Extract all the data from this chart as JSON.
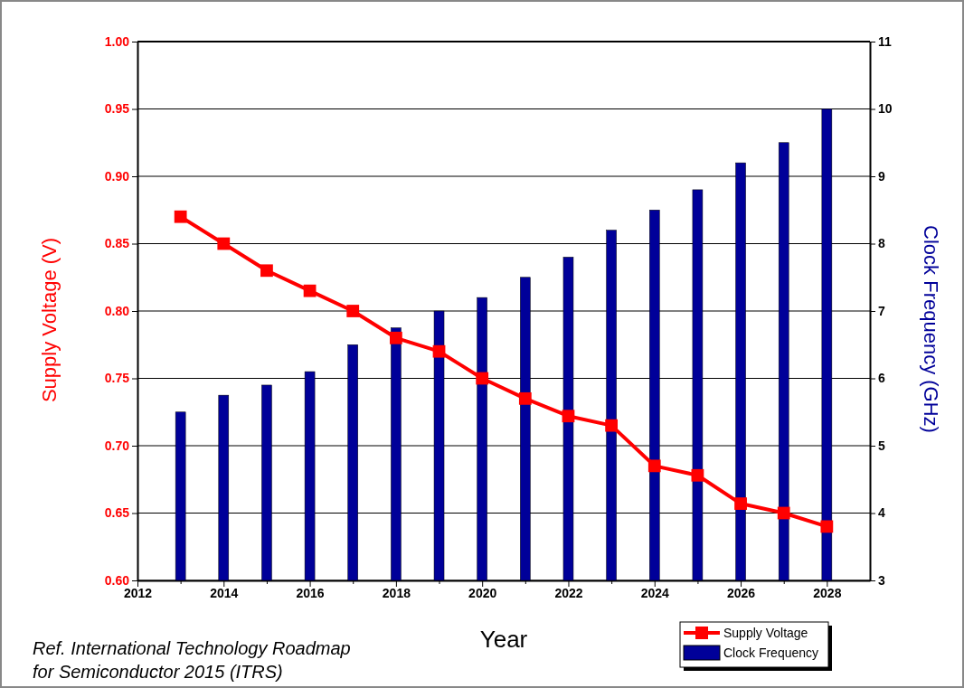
{
  "chart_data": {
    "type": "line",
    "xlabel": "Year",
    "ylabel": "Supply Voltage (V)",
    "y2label": "Clock Frequency (GHz)",
    "annotations": [
      "Ref. International Technology Roadmap\nfor Semiconductor 2015 (ITRS)"
    ],
    "x": [
      2013,
      2014,
      2015,
      2016,
      2017,
      2018,
      2019,
      2020,
      2021,
      2022,
      2023,
      2024,
      2025,
      2026,
      2027,
      2028
    ],
    "series": [
      {
        "name": "Supply Voltage",
        "color": "#ff0000",
        "values": [
          0.87,
          0.85,
          0.83,
          0.815,
          0.8,
          0.78,
          0.77,
          0.75,
          0.735,
          0.722,
          0.715,
          0.685,
          0.678,
          0.657,
          0.65,
          0.64
        ]
      },
      {
        "name": "Clock Frequency",
        "type": "bar",
        "axis": "y2",
        "color": "#000099",
        "values": [
          5.5,
          5.75,
          5.9,
          6.1,
          6.5,
          6.75,
          7.0,
          7.2,
          7.5,
          7.8,
          8.2,
          8.5,
          8.8,
          9.2,
          9.5,
          10.0
        ]
      }
    ],
    "xlim": [
      2012,
      2029
    ],
    "xticks": [
      2012,
      {
        "value": 2013,
        "label": null
      },
      2014,
      {
        "value": 2015,
        "label": null
      },
      2016,
      {
        "value": 2017,
        "label": null
      },
      2018,
      {
        "value": 2019,
        "label": null
      },
      2020,
      {
        "value": 2021,
        "label": null
      },
      2022,
      {
        "value": 2023,
        "label": null
      },
      2024,
      {
        "value": 2025,
        "label": null
      },
      2026,
      {
        "value": 2027,
        "label": null
      },
      2028
    ],
    "ylim": [
      0.6,
      1.0
    ],
    "yticks": [
      {
        "value": 0.6,
        "label": "0.60"
      },
      {
        "value": 0.65,
        "label": "0.65"
      },
      {
        "value": 0.7,
        "label": "0.70"
      },
      {
        "value": 0.75,
        "label": "0.75"
      },
      {
        "value": 0.8,
        "label": "0.80"
      },
      {
        "value": 0.85,
        "label": "0.85"
      },
      {
        "value": 0.9,
        "label": "0.90"
      },
      {
        "value": 0.95,
        "label": "0.95"
      },
      {
        "value": 1.0,
        "label": "1.00"
      }
    ],
    "y2lim": [
      3,
      11
    ],
    "y2ticks": [
      3,
      4,
      5,
      6,
      7,
      8,
      9,
      10,
      11
    ],
    "grid": "y",
    "legend": "bottom right",
    "marker": "square",
    "line_style": "solid"
  }
}
